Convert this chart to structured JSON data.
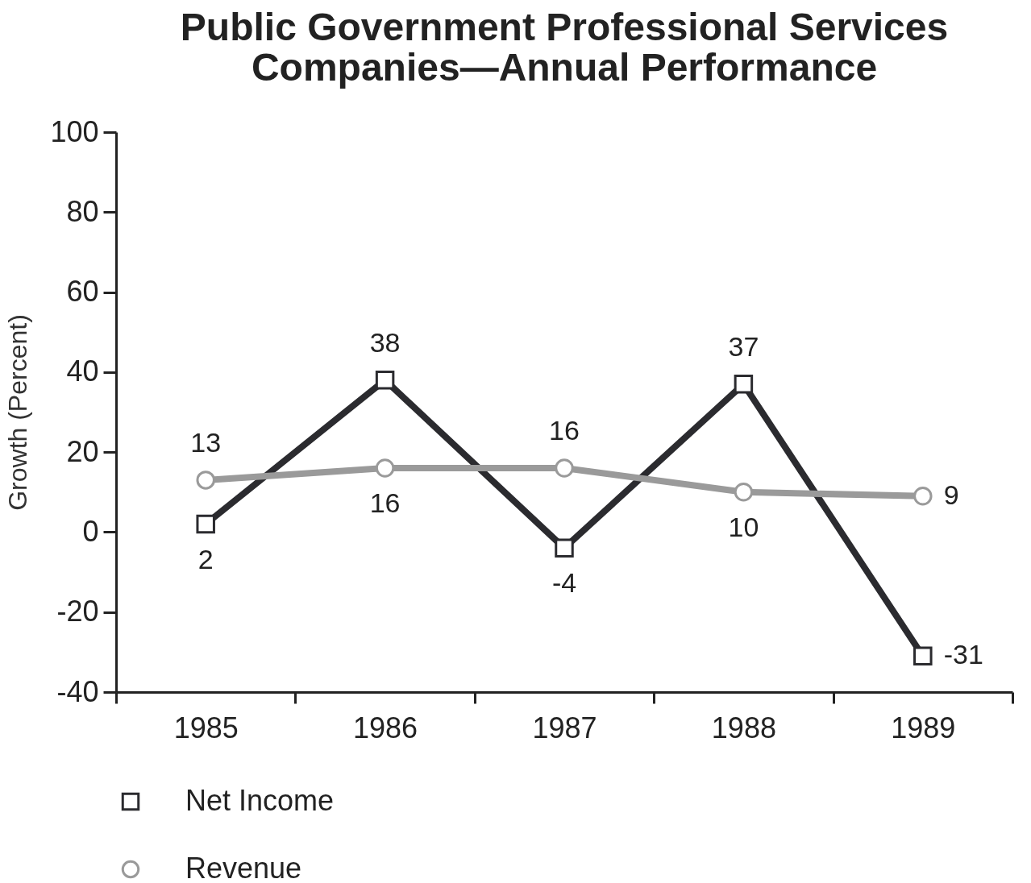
{
  "chart_data": {
    "type": "line",
    "title": "Public Government Professional Services\nCompanies—Annual Performance",
    "ylabel": "Growth (Percent)",
    "categories": [
      "1985",
      "1986",
      "1987",
      "1988",
      "1989"
    ],
    "series": [
      {
        "name": "Net Income",
        "color": "#2b2b2f",
        "marker": "square",
        "values": [
          2,
          38,
          -4,
          37,
          -31
        ]
      },
      {
        "name": "Revenue",
        "color": "#9a9a9a",
        "marker": "circle",
        "values": [
          13,
          16,
          16,
          10,
          9
        ]
      }
    ],
    "ylim": [
      -40,
      100
    ],
    "yticks": [
      -40,
      -20,
      0,
      20,
      40,
      60,
      80,
      100
    ],
    "data_labels": true,
    "legend": "bottom",
    "line_style": "solid",
    "grid": false
  }
}
